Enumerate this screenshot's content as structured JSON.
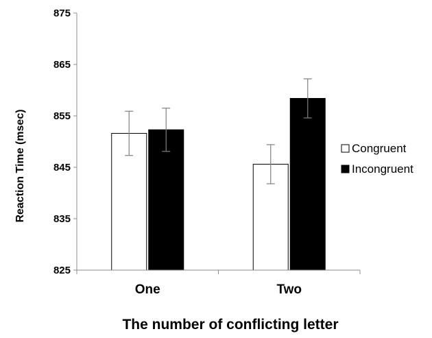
{
  "chart_data": {
    "type": "bar",
    "title": "",
    "xlabel": "The number of conflicting letter",
    "ylabel": "Reaction Time (msec)",
    "ylim": [
      825,
      875
    ],
    "yticks": [
      "825",
      "835",
      "845",
      "855",
      "865",
      "875"
    ],
    "categories": [
      "One",
      "Two"
    ],
    "series": [
      {
        "name": "Congruent",
        "color": "#ffffff",
        "values": [
          851.6,
          845.6
        ],
        "error": [
          4.3,
          3.8
        ]
      },
      {
        "name": "Incongruent",
        "color": "#000000",
        "values": [
          852.3,
          858.4
        ],
        "error": [
          4.2,
          3.8
        ]
      }
    ],
    "grid": false,
    "legend_position": "right"
  }
}
